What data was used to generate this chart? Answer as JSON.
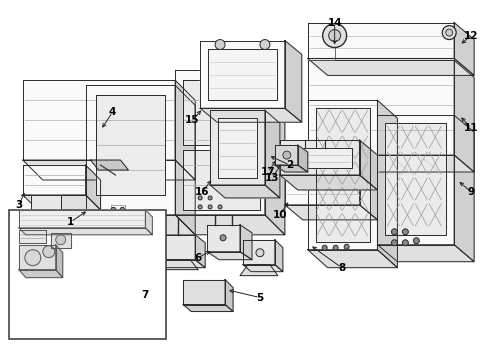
{
  "bg_color": "#ffffff",
  "lc": "#2a2a2a",
  "lw": 0.7,
  "figsize": [
    4.9,
    3.6
  ],
  "dpi": 100,
  "label_fs": 7.5,
  "label_fw": "bold"
}
